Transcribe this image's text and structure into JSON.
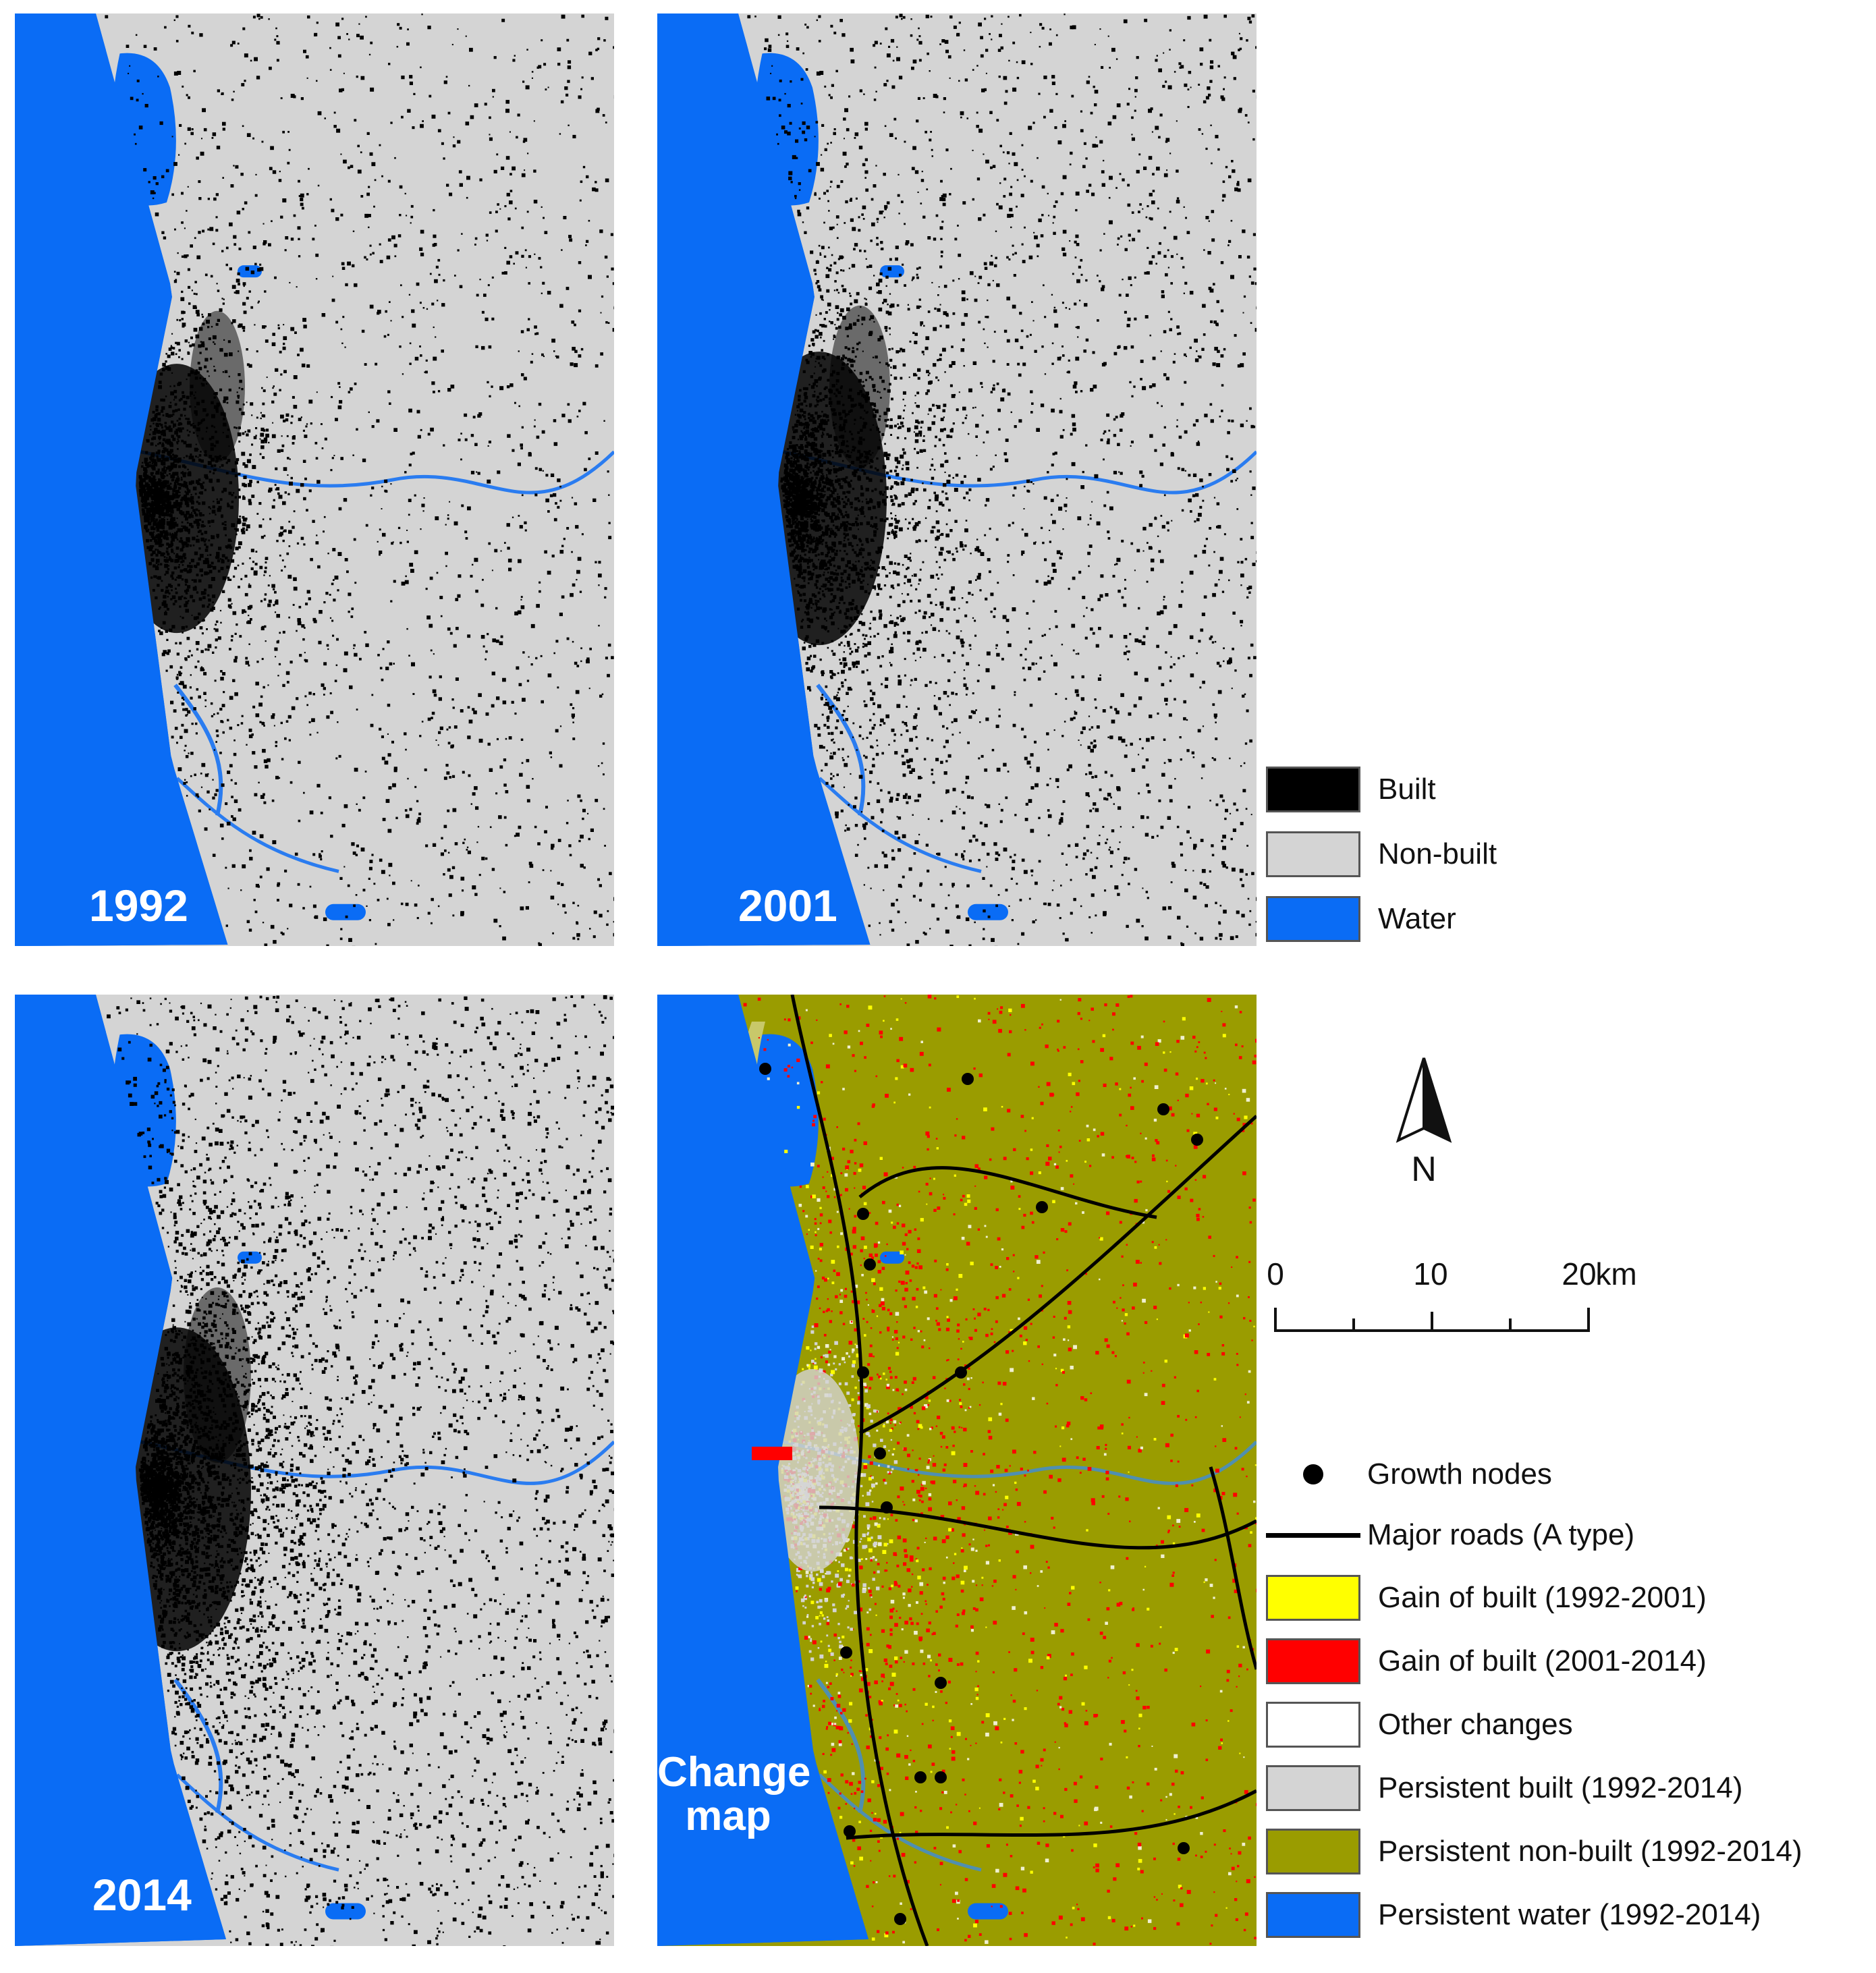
{
  "panels": [
    {
      "id": "p1992",
      "label": "1992",
      "density": 0.55
    },
    {
      "id": "p2001",
      "label": "2001",
      "density": 0.75
    },
    {
      "id": "p2014",
      "label": "2014",
      "density": 1.0
    },
    {
      "id": "pchange",
      "label": "Change map"
    }
  ],
  "legend_landcover": [
    {
      "label": "Built",
      "color": "#000000"
    },
    {
      "label": "Non-built",
      "color": "#d4d4d4"
    },
    {
      "label": "Water",
      "color": "#0a6cf5"
    }
  ],
  "legend_change": [
    {
      "label": "Growth nodes",
      "symbol": "dot"
    },
    {
      "label": "Major roads (A type)",
      "symbol": "line"
    },
    {
      "label": "Gain of built (1992-2001)",
      "color": "#ffff00"
    },
    {
      "label": "Gain of built (2001-2014)",
      "color": "#ff0000"
    },
    {
      "label": "Other changes",
      "color": "#ffffff"
    },
    {
      "label": "Persistent built (1992-2014)",
      "color": "#d4d4d4"
    },
    {
      "label": "Persistent non-built (1992-2014)",
      "color": "#9a9c00"
    },
    {
      "label": "Persistent water (1992-2014)",
      "color": "#0a6cf5"
    }
  ],
  "north_arrow": {
    "label": "N"
  },
  "scale_bar": {
    "ticks": [
      "0",
      "10",
      "20"
    ],
    "unit": "km"
  },
  "colors": {
    "water": "#0a6cf5",
    "nonbuilt": "#d4d4d4",
    "built": "#000000",
    "persistent_nonbuilt": "#9a9c00",
    "gain_early": "#ffff00",
    "gain_late": "#ff0000"
  }
}
